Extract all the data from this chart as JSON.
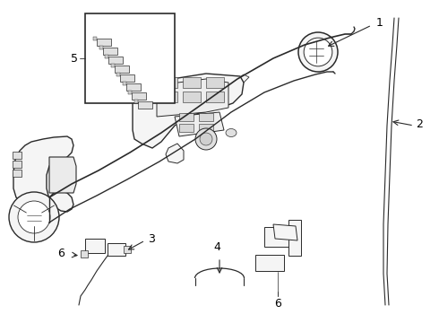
{
  "background_color": "#ffffff",
  "line_color": "#2a2a2a",
  "label_color": "#000000",
  "fig_width": 4.9,
  "fig_height": 3.6,
  "dpi": 100,
  "label_fontsize": 9,
  "lw_main": 1.0,
  "lw_detail": 0.6,
  "lw_thin": 0.4
}
